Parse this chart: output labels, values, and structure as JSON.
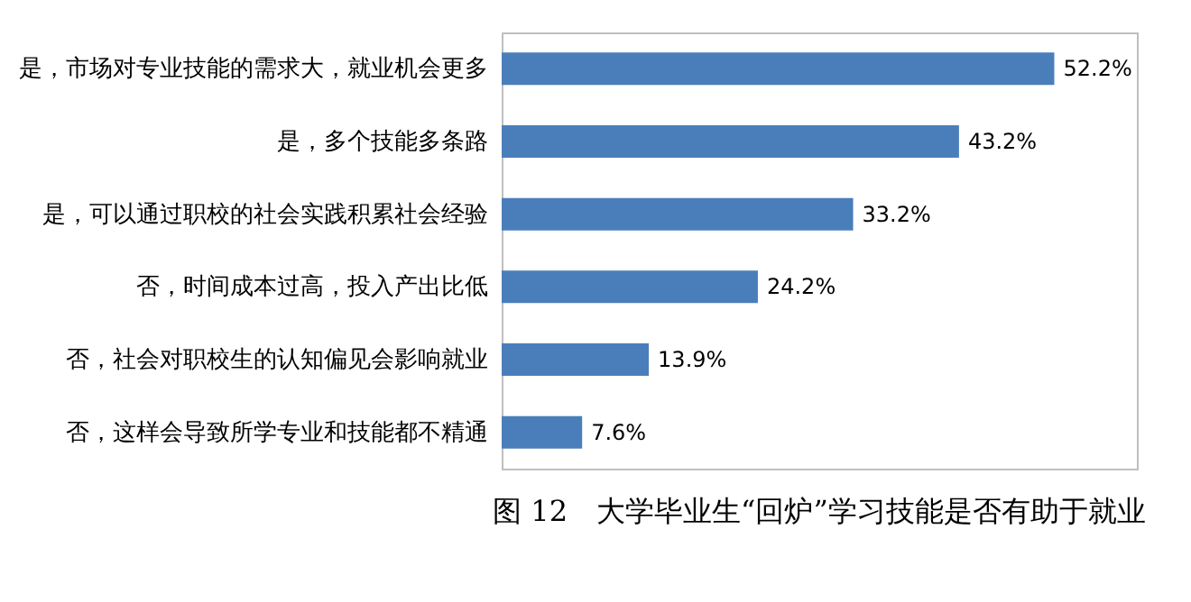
{
  "chart_data": {
    "type": "bar",
    "orientation": "horizontal",
    "title": "图 12　大学毕业生“回炉”学习技能是否有助于就业",
    "categories": [
      "是，市场对专业技能的需求大，就业机会更多",
      "是，多个技能多条路",
      "是，可以通过职校的社会实践积累社会经验",
      "否，时间成本过高，投入产出比低",
      "否，社会对职校生的认知偏见会影响就业",
      "否，这样会导致所学专业和技能都不精通"
    ],
    "values": [
      52.2,
      43.2,
      33.2,
      24.2,
      13.9,
      7.6
    ],
    "value_labels": [
      "52.2%",
      "43.2%",
      "33.2%",
      "24.2%",
      "13.9%",
      "7.6%"
    ],
    "color": "#4a7ebb",
    "xlim": [
      0,
      60
    ],
    "tick_labels": "y"
  }
}
